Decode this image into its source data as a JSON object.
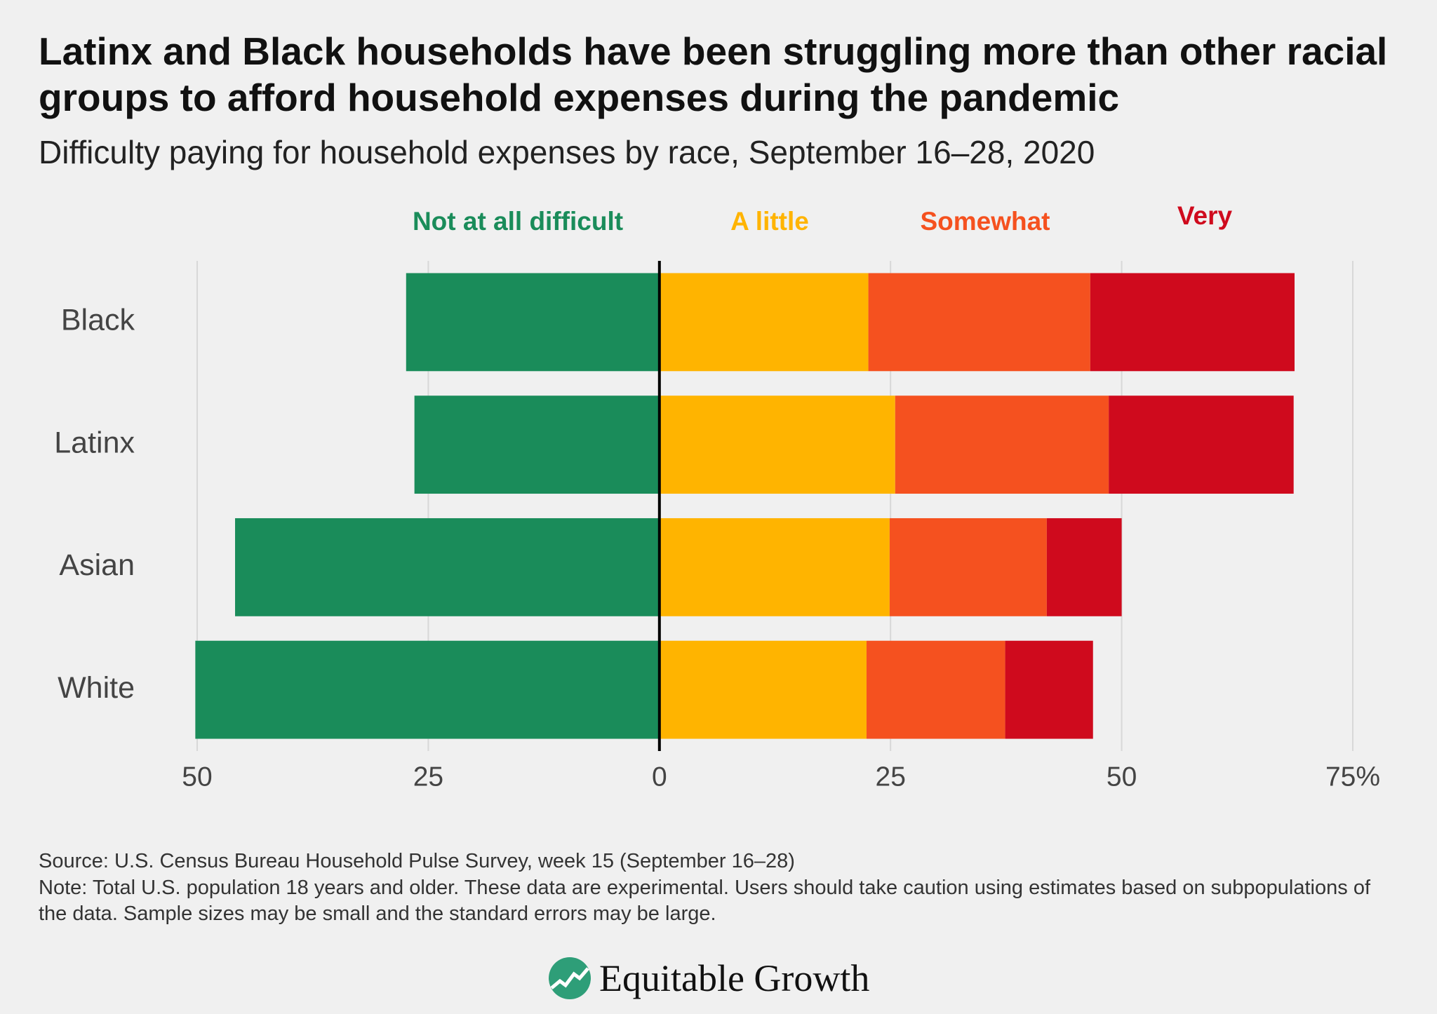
{
  "chart_data": {
    "type": "diverging-bar",
    "title": "Latinx and Black households have been struggling more than other racial groups to afford household expenses during the pandemic",
    "subtitle": "Difficulty paying for household expenses by race, September 16–28, 2020",
    "categories": [
      "Black",
      "Latinx",
      "Asian",
      "White"
    ],
    "series": [
      {
        "name": "Not at all difficult",
        "color": "#1a8c5a",
        "values": [
          -27.4,
          -26.5,
          -45.9,
          -50.2
        ]
      },
      {
        "name": "A little",
        "color": "#ffb400",
        "values": [
          22.6,
          25.5,
          24.9,
          22.4
        ]
      },
      {
        "name": "Somewhat",
        "color": "#f5511f",
        "values": [
          24.0,
          23.1,
          17.0,
          15.0
        ]
      },
      {
        "name": "Very",
        "color": "#cf0a1d",
        "values": [
          22.1,
          20.0,
          8.1,
          9.5
        ]
      }
    ],
    "xlim": [
      -50,
      75
    ],
    "xticks": [
      {
        "value": -50,
        "label": "50"
      },
      {
        "value": -25,
        "label": "25"
      },
      0,
      25,
      50,
      {
        "value": 75,
        "label": "75%"
      }
    ],
    "grid": true,
    "source": "Source: U.S. Census Bureau Household Pulse Survey, week 15 (September 16–28)",
    "note": "Note: Total U.S. population 18 years and older. These data are experimental. Users should take caution using estimates based on subpopulations of the data. Sample sizes may be small and the standard errors may be large.",
    "logo": "Equitable Growth"
  }
}
